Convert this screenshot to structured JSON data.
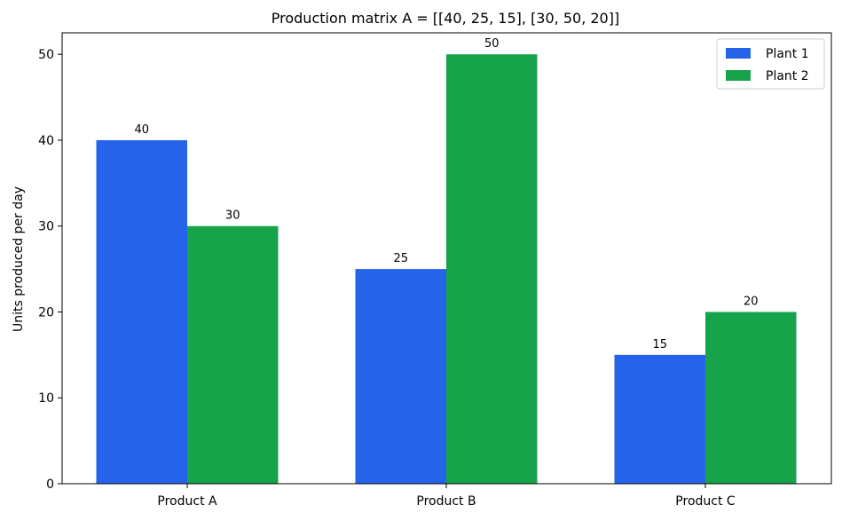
{
  "chart_data": {
    "type": "bar",
    "title": "Production matrix A = [[40, 25, 15], [30, 50, 20]]",
    "xlabel": "",
    "ylabel": "Units produced per day",
    "categories": [
      "Product A",
      "Product B",
      "Product C"
    ],
    "series": [
      {
        "name": "Plant 1",
        "values": [
          40,
          25,
          15
        ],
        "color": "#2563eb"
      },
      {
        "name": "Plant 2",
        "values": [
          30,
          50,
          20
        ],
        "color": "#16a34a"
      }
    ],
    "ylim": [
      0,
      52.5
    ],
    "yticks": [
      0,
      10,
      20,
      30,
      40,
      50
    ],
    "grid": false,
    "legend_position": "top-right",
    "data_labels": true
  }
}
